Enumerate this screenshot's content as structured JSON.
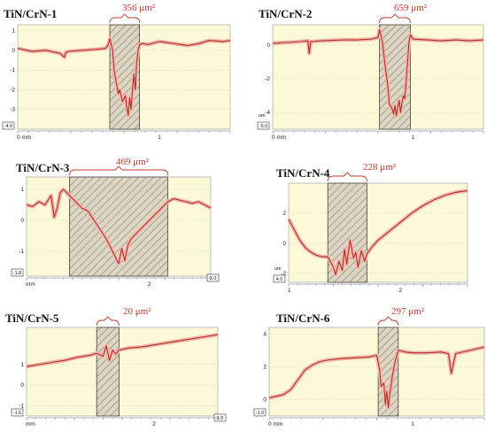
{
  "chart_data": [
    {
      "type": "line",
      "title": "TiN/CrN-1",
      "area_label": "356 μm²",
      "y_ticks": [
        1,
        0,
        -1,
        -2,
        -3
      ],
      "x_ticks": [
        "0 mm",
        "1"
      ],
      "box_label": "-4.0",
      "ylim": [
        -4.0,
        1.3
      ],
      "xlim": [
        0,
        1.5
      ],
      "hatched_region": [
        0.65,
        0.86
      ],
      "colors": {
        "line": "#b03020",
        "band": "#f2b8b0",
        "hatch_face": "#ddd6c2",
        "plot_bg": "#fbf9d8"
      },
      "series": [
        {
          "x": [
            0,
            0.1,
            0.2,
            0.3,
            0.33,
            0.34,
            0.36,
            0.45,
            0.55,
            0.62,
            0.64,
            0.65,
            0.67,
            0.68,
            0.7,
            0.71,
            0.72,
            0.74,
            0.76,
            0.77,
            0.78,
            0.79,
            0.8,
            0.81,
            0.82,
            0.83,
            0.84,
            0.85,
            0.86,
            0.88,
            0.92,
            1.0,
            1.1,
            1.2,
            1.28,
            1.35,
            1.45,
            1.5
          ],
          "y": [
            0.1,
            -0.05,
            0.0,
            -0.15,
            -0.35,
            -0.1,
            -0.05,
            0.0,
            0.05,
            0.1,
            0.3,
            0.6,
            0.0,
            -1.0,
            -1.8,
            -2.2,
            -2.0,
            -2.6,
            -2.3,
            -2.9,
            -3.3,
            -2.4,
            -3.0,
            -2.0,
            -1.2,
            -2.0,
            -0.6,
            0.0,
            0.3,
            0.35,
            0.3,
            0.45,
            0.35,
            0.25,
            0.35,
            0.5,
            0.45,
            0.5
          ]
        }
      ]
    },
    {
      "type": "line",
      "title": "TiN/CrN-2",
      "area_label": "659 μm²",
      "y_ticks": [
        0,
        -2,
        -4
      ],
      "x_ticks": [
        "0 mm",
        "1"
      ],
      "box_label": "-5.0",
      "y_unit": "um",
      "ylim": [
        -5.0,
        1.2
      ],
      "xlim": [
        0,
        1.5
      ],
      "hatched_region": [
        0.76,
        0.98
      ],
      "colors": {
        "line": "#b03020",
        "band": "#f2b8b0",
        "hatch_face": "#ddd6c2",
        "plot_bg": "#fbf9d8"
      },
      "series": [
        {
          "x": [
            0,
            0.1,
            0.2,
            0.25,
            0.26,
            0.27,
            0.35,
            0.5,
            0.6,
            0.7,
            0.75,
            0.76,
            0.78,
            0.8,
            0.82,
            0.83,
            0.85,
            0.86,
            0.87,
            0.88,
            0.89,
            0.9,
            0.91,
            0.92,
            0.93,
            0.94,
            0.95,
            0.96,
            0.97,
            0.98,
            1.0,
            1.1,
            1.2,
            1.3,
            1.4,
            1.5
          ],
          "y": [
            0.1,
            0.15,
            0.2,
            0.25,
            -0.5,
            0.2,
            0.25,
            0.3,
            0.3,
            0.35,
            0.45,
            0.9,
            0.2,
            -1.2,
            -2.5,
            -3.5,
            -3.8,
            -4.1,
            -3.6,
            -4.2,
            -3.7,
            -3.3,
            -4.0,
            -3.4,
            -3.0,
            -3.2,
            -2.2,
            -1.0,
            0.2,
            0.6,
            0.35,
            0.3,
            0.25,
            0.3,
            0.25,
            0.3
          ]
        }
      ]
    },
    {
      "type": "line",
      "title": "TiN/CrN-3",
      "area_label": "469 μm²",
      "y_ticks": [
        1,
        0,
        -1
      ],
      "x_ticks": [
        "mm",
        "2"
      ],
      "box_label": "-1.8",
      "right_box_label": "3.0",
      "ylim": [
        -1.8,
        1.4
      ],
      "xlim": [
        0,
        3.0
      ],
      "hatched_region": [
        0.7,
        2.3
      ],
      "colors": {
        "line": "#b03020",
        "band": "#f2b8b0",
        "hatch_face": "#ddd6c2",
        "plot_bg": "#fbf9d8"
      },
      "series": [
        {
          "x": [
            0,
            0.1,
            0.2,
            0.3,
            0.4,
            0.45,
            0.5,
            0.55,
            0.6,
            0.7,
            0.8,
            0.9,
            1.0,
            1.1,
            1.2,
            1.3,
            1.4,
            1.45,
            1.5,
            1.55,
            1.6,
            1.65,
            1.7,
            1.8,
            1.9,
            2.0,
            2.1,
            2.2,
            2.3,
            2.4,
            2.5,
            2.6,
            2.7,
            2.8,
            2.9,
            3.0
          ],
          "y": [
            0.5,
            0.45,
            0.6,
            0.5,
            0.8,
            0.1,
            0.4,
            0.9,
            1.0,
            0.8,
            0.6,
            0.4,
            0.3,
            0.0,
            -0.3,
            -0.6,
            -1.0,
            -1.2,
            -1.4,
            -0.9,
            -1.3,
            -0.8,
            -0.6,
            -0.4,
            -0.2,
            0.0,
            0.2,
            0.4,
            0.6,
            0.7,
            0.65,
            0.6,
            0.55,
            0.6,
            0.5,
            0.4
          ]
        }
      ]
    },
    {
      "type": "line",
      "title": "TiN/CrN-4",
      "area_label": "228 μm²",
      "y_ticks": [
        2,
        0,
        -2
      ],
      "x_ticks": [
        "1",
        "2"
      ],
      "box_label": "4.0",
      "y_unit": "um",
      "ylim": [
        -2.6,
        4.0
      ],
      "xlim": [
        1.0,
        2.6
      ],
      "hatched_region": [
        1.35,
        1.7
      ],
      "colors": {
        "line": "#b03020",
        "band": "#f2b8b0",
        "hatch_face": "#ddd6c2",
        "plot_bg": "#fbf9d8"
      },
      "series": [
        {
          "x": [
            1.0,
            1.05,
            1.1,
            1.15,
            1.2,
            1.25,
            1.3,
            1.35,
            1.4,
            1.42,
            1.45,
            1.48,
            1.5,
            1.52,
            1.55,
            1.58,
            1.6,
            1.62,
            1.65,
            1.68,
            1.7,
            1.75,
            1.8,
            1.9,
            2.0,
            2.1,
            2.2,
            2.3,
            2.4,
            2.5,
            2.6
          ],
          "y": [
            1.6,
            0.9,
            0.2,
            -0.3,
            -0.6,
            -0.8,
            -0.9,
            -0.9,
            -1.6,
            -2.1,
            -1.2,
            -1.8,
            -0.4,
            -1.4,
            0.2,
            -1.0,
            -0.6,
            -1.6,
            -0.5,
            -1.2,
            -0.7,
            -0.2,
            0.2,
            0.8,
            1.4,
            2.0,
            2.5,
            2.9,
            3.2,
            3.4,
            3.5
          ]
        }
      ]
    },
    {
      "type": "line",
      "title": "TiN/CrN-5",
      "area_label": "20 μm²",
      "y_ticks": [
        1,
        0,
        -1
      ],
      "x_ticks": [
        "mm",
        "2"
      ],
      "box_label": "-1.5",
      "right_box_label": "3.0",
      "ylim": [
        -1.5,
        2.8
      ],
      "xlim": [
        0,
        3.0
      ],
      "hatched_region": [
        1.1,
        1.45
      ],
      "colors": {
        "line": "#b03020",
        "band": "#f2b8b0",
        "hatch_face": "#ddd6c2",
        "plot_bg": "#fbf9d8"
      },
      "series": [
        {
          "x": [
            0,
            0.2,
            0.4,
            0.6,
            0.8,
            1.0,
            1.1,
            1.2,
            1.25,
            1.3,
            1.35,
            1.4,
            1.45,
            1.6,
            1.8,
            2.0,
            2.2,
            2.4,
            2.6,
            2.8,
            3.0
          ],
          "y": [
            0.9,
            1.0,
            1.1,
            1.2,
            1.35,
            1.45,
            1.55,
            1.4,
            1.9,
            1.2,
            1.7,
            1.5,
            1.7,
            1.8,
            1.85,
            1.95,
            2.05,
            2.15,
            2.25,
            2.35,
            2.45
          ]
        }
      ]
    },
    {
      "type": "line",
      "title": "TiN/CrN-6",
      "area_label": "297 μm²",
      "y_ticks": [
        4,
        2,
        0
      ],
      "x_ticks": [
        "0 mm",
        "1"
      ],
      "box_label": "-1.0",
      "ylim": [
        -1.0,
        4.4
      ],
      "xlim": [
        0,
        1.5
      ],
      "hatched_region": [
        0.76,
        0.9
      ],
      "colors": {
        "line": "#b03020",
        "band": "#f2b8b0",
        "hatch_face": "#ddd6c2",
        "plot_bg": "#fbf9d8"
      },
      "series": [
        {
          "x": [
            0,
            0.05,
            0.1,
            0.15,
            0.2,
            0.25,
            0.3,
            0.35,
            0.4,
            0.5,
            0.6,
            0.7,
            0.75,
            0.77,
            0.78,
            0.8,
            0.81,
            0.82,
            0.83,
            0.84,
            0.85,
            0.86,
            0.88,
            0.9,
            0.95,
            1.0,
            1.1,
            1.2,
            1.25,
            1.27,
            1.3,
            1.4,
            1.5
          ],
          "y": [
            0.1,
            0.2,
            0.3,
            0.6,
            1.2,
            1.8,
            2.1,
            2.3,
            2.4,
            2.5,
            2.55,
            2.6,
            2.7,
            1.8,
            0.8,
            1.0,
            -0.3,
            0.5,
            -0.5,
            0.3,
            0.9,
            1.5,
            2.4,
            3.0,
            2.9,
            2.85,
            2.85,
            2.9,
            2.8,
            1.6,
            2.8,
            3.0,
            3.2
          ]
        }
      ]
    }
  ]
}
